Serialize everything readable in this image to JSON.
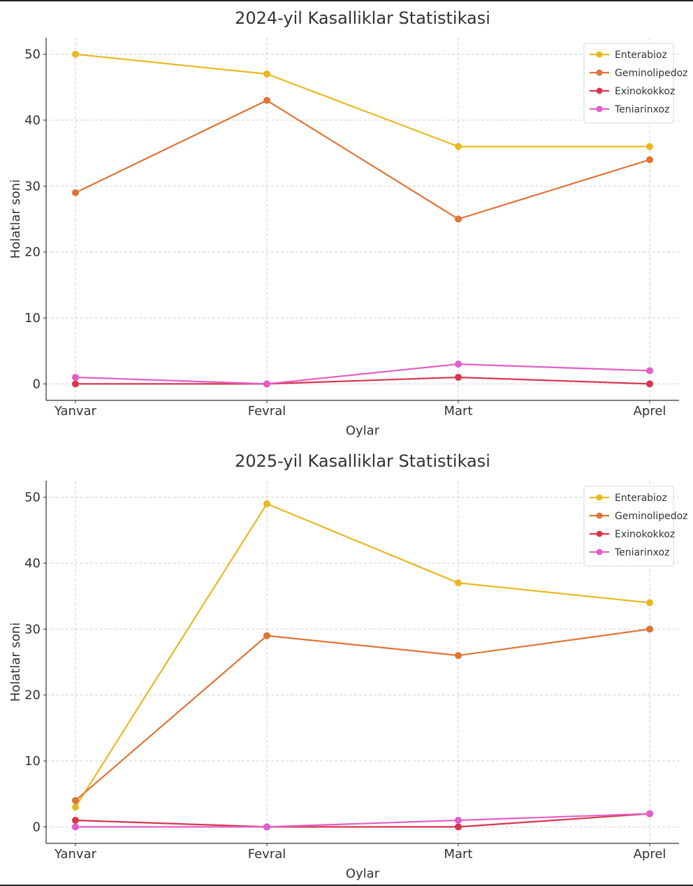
{
  "chart_data": [
    {
      "type": "line",
      "title": "2024-yil Kasalliklar Statistikasi",
      "xlabel": "Oylar",
      "ylabel": "Holatlar soni",
      "categories": [
        "Yanvar",
        "Fevral",
        "Mart",
        "Aprel"
      ],
      "ylim": [
        -2.5,
        52.5
      ],
      "yticks": [
        0,
        10,
        20,
        30,
        40,
        50
      ],
      "grid": true,
      "legend_position": "top-right",
      "series": [
        {
          "name": "Enterabioz",
          "color": "#e8b81e",
          "values": [
            50,
            47,
            36,
            36
          ]
        },
        {
          "name": "Geminolipedoz",
          "color": "#e07434",
          "values": [
            29,
            43,
            25,
            34
          ]
        },
        {
          "name": "Exinokokkoz",
          "color": "#d8374e",
          "values": [
            0,
            0,
            1,
            0
          ]
        },
        {
          "name": "Teniarinxoz",
          "color": "#e35fc6",
          "values": [
            1,
            0,
            3,
            2
          ]
        }
      ]
    },
    {
      "type": "line",
      "title": "2025-yil Kasalliklar Statistikasi",
      "xlabel": "Oylar",
      "ylabel": "Holatlar soni",
      "categories": [
        "Yanvar",
        "Fevral",
        "Mart",
        "Aprel"
      ],
      "ylim": [
        -2.5,
        52.5
      ],
      "yticks": [
        0,
        10,
        20,
        30,
        40,
        50
      ],
      "grid": true,
      "legend_position": "top-right",
      "series": [
        {
          "name": "Enterabioz",
          "color": "#e8b81e",
          "values": [
            3,
            49,
            37,
            34
          ]
        },
        {
          "name": "Geminolipedoz",
          "color": "#e07434",
          "values": [
            4,
            29,
            26,
            30
          ]
        },
        {
          "name": "Exinokokkoz",
          "color": "#d8374e",
          "values": [
            1,
            0,
            0,
            2
          ]
        },
        {
          "name": "Teniarinxoz",
          "color": "#e35fc6",
          "values": [
            0,
            0,
            1,
            2
          ]
        }
      ]
    }
  ]
}
